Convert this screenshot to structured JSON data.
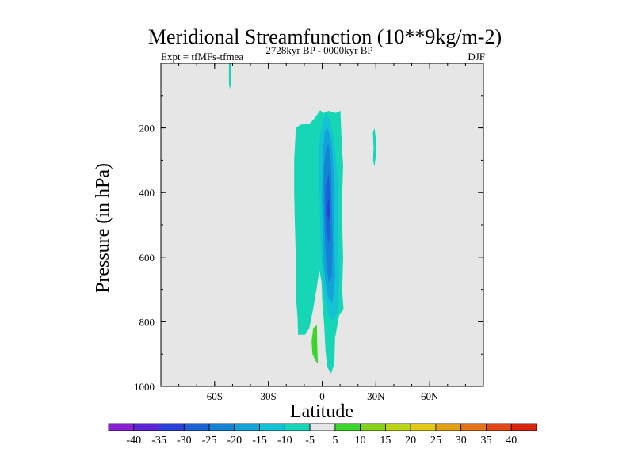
{
  "chart_data": {
    "type": "contour",
    "title": "Meridional Streamfunction (10**9kg/m-2)",
    "subtitle_left": "Expt = tfMFs-tfmea",
    "subtitle_center": "2728kyr BP - 0000kyr BP",
    "subtitle_right": "DJF",
    "xlabel": "Latitude",
    "ylabel": "Pressure (in hPa)",
    "xlim": [
      -90,
      90
    ],
    "ylim": [
      0,
      1000
    ],
    "y_inverted": true,
    "x_ticks": [
      {
        "value": -60,
        "label": "60S"
      },
      {
        "value": -30,
        "label": "30S"
      },
      {
        "value": 0,
        "label": "0"
      },
      {
        "value": 30,
        "label": "30N"
      },
      {
        "value": 60,
        "label": "60N"
      }
    ],
    "y_ticks": [
      {
        "value": 200,
        "label": "200"
      },
      {
        "value": 400,
        "label": "400"
      },
      {
        "value": 600,
        "label": "600"
      },
      {
        "value": 800,
        "label": "800"
      },
      {
        "value": 1000,
        "label": "1000"
      }
    ],
    "background_color": "#e6e6e6",
    "colorbar": {
      "labels": [
        "-40",
        "-35",
        "-30",
        "-25",
        "-20",
        "-15",
        "-10",
        "-5",
        "5",
        "10",
        "15",
        "20",
        "25",
        "30",
        "35",
        "40"
      ],
      "colors": [
        "#8a1fd6",
        "#5e22d6",
        "#2b3fd9",
        "#1a62d6",
        "#1583d4",
        "#12a3d8",
        "#13c2d4",
        "#17d6b5",
        "#e6e6e6",
        "#3bd62a",
        "#86d41a",
        "#bcd418",
        "#e3c915",
        "#e3a015",
        "#e37315",
        "#e34715",
        "#d9260f"
      ]
    },
    "regions": [
      {
        "level": -5,
        "color": "#17d6b5",
        "polygon": [
          [
            -14.7,
            200
          ],
          [
            -12.1,
            190
          ],
          [
            -6.8,
            186
          ],
          [
            -4.1,
            169
          ],
          [
            -1.1,
            145
          ],
          [
            0.7,
            154
          ],
          [
            3.7,
            147
          ],
          [
            7.6,
            154
          ],
          [
            10.2,
            147
          ],
          [
            10.8,
            230
          ],
          [
            11.7,
            320
          ],
          [
            11.2,
            400
          ],
          [
            11.2,
            500
          ],
          [
            11.7,
            600
          ],
          [
            11.2,
            700
          ],
          [
            11.9,
            760
          ],
          [
            9.5,
            780
          ],
          [
            7.2,
            850
          ],
          [
            6.8,
            930
          ],
          [
            5.0,
            960
          ],
          [
            2.8,
            940
          ],
          [
            1.9,
            890
          ],
          [
            1.0,
            800
          ],
          [
            0.1,
            740
          ],
          [
            -0.3,
            680
          ],
          [
            -1.5,
            640
          ],
          [
            -3.2,
            700
          ],
          [
            -5.0,
            760
          ],
          [
            -7.2,
            820
          ],
          [
            -9.5,
            840
          ],
          [
            -13.4,
            840
          ],
          [
            -13.8,
            780
          ],
          [
            -14.7,
            720
          ],
          [
            -14.7,
            600
          ],
          [
            -15.2,
            500
          ],
          [
            -15.6,
            400
          ],
          [
            -15.6,
            300
          ]
        ]
      },
      {
        "level": -10,
        "color": "#13c2d4",
        "polygon": [
          [
            -1.5,
            240
          ],
          [
            0.3,
            180
          ],
          [
            2.5,
            150
          ],
          [
            5.0,
            190
          ],
          [
            7.2,
            260
          ],
          [
            8.5,
            350
          ],
          [
            8.9,
            450
          ],
          [
            8.9,
            550
          ],
          [
            9.4,
            650
          ],
          [
            9.0,
            760
          ],
          [
            6.3,
            800
          ],
          [
            3.7,
            780
          ],
          [
            1.9,
            740
          ],
          [
            0.3,
            660
          ],
          [
            -0.6,
            580
          ],
          [
            -1.1,
            500
          ],
          [
            -1.5,
            400
          ],
          [
            -1.9,
            300
          ]
        ]
      },
      {
        "level": -15,
        "color": "#12a3d8",
        "polygon": [
          [
            0.3,
            270
          ],
          [
            1.5,
            210
          ],
          [
            3.2,
            200
          ],
          [
            5.4,
            250
          ],
          [
            6.3,
            330
          ],
          [
            6.8,
            450
          ],
          [
            6.8,
            560
          ],
          [
            7.2,
            660
          ],
          [
            5.9,
            740
          ],
          [
            3.7,
            730
          ],
          [
            1.9,
            680
          ],
          [
            0.7,
            610
          ],
          [
            0.3,
            520
          ],
          [
            -0.1,
            420
          ],
          [
            0.1,
            340
          ]
        ]
      },
      {
        "level": -20,
        "color": "#1583d4",
        "polygon": [
          [
            1.0,
            320
          ],
          [
            2.3,
            260
          ],
          [
            3.7,
            250
          ],
          [
            5.0,
            320
          ],
          [
            5.4,
            430
          ],
          [
            5.9,
            560
          ],
          [
            5.4,
            660
          ],
          [
            3.7,
            680
          ],
          [
            2.3,
            620
          ],
          [
            1.5,
            540
          ],
          [
            1.0,
            430
          ]
        ]
      },
      {
        "level": -25,
        "color": "#1a62d6",
        "polygon": [
          [
            2.0,
            380
          ],
          [
            3.7,
            340
          ],
          [
            4.6,
            420
          ],
          [
            4.6,
            520
          ],
          [
            3.7,
            560
          ],
          [
            2.3,
            520
          ],
          [
            1.9,
            440
          ]
        ]
      },
      {
        "level": -30,
        "color": "#2b3fd9",
        "polygon": [
          [
            3.0,
            430
          ],
          [
            3.8,
            420
          ],
          [
            4.2,
            460
          ],
          [
            3.8,
            490
          ],
          [
            3.0,
            470
          ]
        ]
      },
      {
        "level": -5,
        "color": "#17d6b5",
        "polygon": [
          [
            -52.0,
            0
          ],
          [
            -50.6,
            0
          ],
          [
            -50.8,
            40
          ],
          [
            -51.1,
            70
          ],
          [
            -51.6,
            80
          ],
          [
            -52.0,
            60
          ]
        ]
      },
      {
        "level": -5,
        "color": "#17d6b5",
        "polygon": [
          [
            28.3,
            215
          ],
          [
            29.2,
            200
          ],
          [
            30.1,
            240
          ],
          [
            30.1,
            280
          ],
          [
            29.2,
            320
          ],
          [
            28.4,
            300
          ],
          [
            28.7,
            260
          ]
        ]
      },
      {
        "level": 5,
        "color": "#3bd62a",
        "polygon": [
          [
            -5.0,
            820
          ],
          [
            -2.9,
            810
          ],
          [
            -2.8,
            860
          ],
          [
            -2.4,
            930
          ],
          [
            -3.8,
            920
          ],
          [
            -5.4,
            900
          ],
          [
            -5.9,
            860
          ]
        ]
      }
    ]
  }
}
